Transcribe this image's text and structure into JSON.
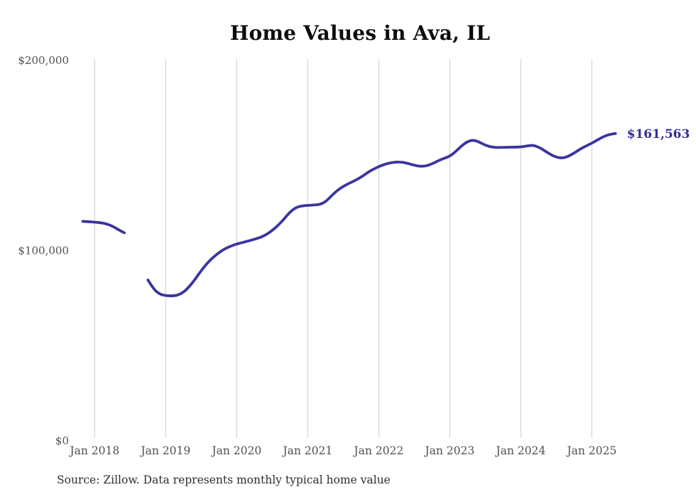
{
  "chart": {
    "title": "Home Values in Ava, IL",
    "source": "Source: Zillow. Data represents monthly typical home value",
    "end_label": "$161,563",
    "colors": {
      "line": "#3a34a0",
      "end_label": "#312c96",
      "gridline": "#cccccc",
      "axis_text": "#4f4f4f",
      "title_text": "#0d0d0d",
      "source_text": "#2e2e2e",
      "background": "#ffffff"
    }
  },
  "chart_data": {
    "type": "line",
    "title": "Home Values in Ava, IL",
    "xlabel": "",
    "ylabel": "",
    "ylim": [
      0,
      200000
    ],
    "x_range": [
      "2017-11",
      "2025-05"
    ],
    "grid": "vertical-only",
    "legend": "none",
    "y_ticks": [
      {
        "label": "$0",
        "value": 0
      },
      {
        "label": "$100,000",
        "value": 100000
      },
      {
        "label": "$200,000",
        "value": 200000
      }
    ],
    "x_ticks": [
      {
        "label": "Jan 2018",
        "month": "2018-01"
      },
      {
        "label": "Jan 2019",
        "month": "2019-01"
      },
      {
        "label": "Jan 2020",
        "month": "2020-01"
      },
      {
        "label": "Jan 2021",
        "month": "2021-01"
      },
      {
        "label": "Jan 2022",
        "month": "2022-01"
      },
      {
        "label": "Jan 2023",
        "month": "2023-01"
      },
      {
        "label": "Jan 2024",
        "month": "2024-01"
      },
      {
        "label": "Jan 2025",
        "month": "2025-01"
      }
    ],
    "series": [
      {
        "name": "Monthly typical home value",
        "months": [
          "2017-11",
          "2017-12",
          "2018-01",
          "2018-02",
          "2018-03",
          "2018-04",
          "2018-05",
          "2018-06",
          "2018-07",
          "2018-08",
          "2018-09",
          "2018-10",
          "2018-11",
          "2018-12",
          "2019-01",
          "2019-02",
          "2019-03",
          "2019-04",
          "2019-05",
          "2019-06",
          "2019-07",
          "2019-08",
          "2019-09",
          "2019-10",
          "2019-11",
          "2019-12",
          "2020-01",
          "2020-02",
          "2020-03",
          "2020-04",
          "2020-05",
          "2020-06",
          "2020-07",
          "2020-08",
          "2020-09",
          "2020-10",
          "2020-11",
          "2020-12",
          "2021-01",
          "2021-02",
          "2021-03",
          "2021-04",
          "2021-05",
          "2021-06",
          "2021-07",
          "2021-08",
          "2021-09",
          "2021-10",
          "2021-11",
          "2021-12",
          "2022-01",
          "2022-02",
          "2022-03",
          "2022-04",
          "2022-05",
          "2022-06",
          "2022-07",
          "2022-08",
          "2022-09",
          "2022-10",
          "2022-11",
          "2022-12",
          "2023-01",
          "2023-02",
          "2023-03",
          "2023-04",
          "2023-05",
          "2023-06",
          "2023-07",
          "2023-08",
          "2023-09",
          "2023-10",
          "2023-11",
          "2023-12",
          "2024-01",
          "2024-02",
          "2024-03",
          "2024-04",
          "2024-05",
          "2024-06",
          "2024-07",
          "2024-08",
          "2024-09",
          "2024-10",
          "2024-11",
          "2024-12",
          "2025-01",
          "2025-02",
          "2025-03",
          "2025-04",
          "2025-05"
        ],
        "values": [
          115400,
          115200,
          115000,
          114700,
          114100,
          112900,
          111000,
          109400,
          null,
          null,
          null,
          84600,
          79600,
          77100,
          76300,
          76200,
          76500,
          78100,
          81100,
          85000,
          89500,
          93400,
          96400,
          99000,
          101000,
          102400,
          103500,
          104300,
          105100,
          106000,
          106900,
          108400,
          110600,
          113300,
          116600,
          120300,
          122700,
          123500,
          123800,
          124000,
          124200,
          125600,
          128800,
          131700,
          133800,
          135400,
          136900,
          138600,
          140800,
          142700,
          144200,
          145400,
          146200,
          146600,
          146500,
          145800,
          144900,
          144300,
          144500,
          145600,
          147200,
          148500,
          149600,
          152100,
          155100,
          157400,
          158200,
          157100,
          155400,
          154500,
          154200,
          154300,
          154400,
          154400,
          154500,
          155000,
          155500,
          154500,
          152600,
          150600,
          149100,
          148600,
          149500,
          151300,
          153300,
          155000,
          156500,
          158300,
          160000,
          161100,
          161563
        ]
      }
    ],
    "last_point": {
      "month": "2025-05",
      "value": 161563,
      "label": "$161,563"
    }
  }
}
